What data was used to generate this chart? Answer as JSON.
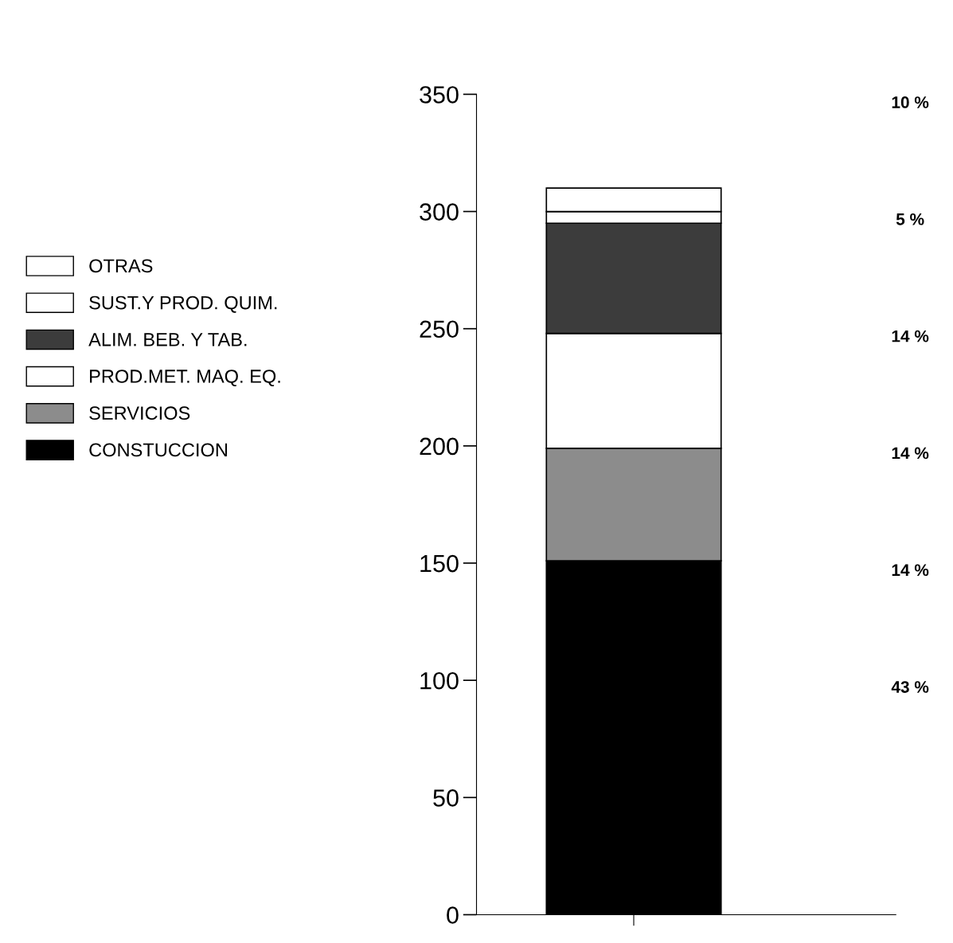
{
  "chart_data": {
    "type": "bar",
    "stacked": true,
    "categories": [
      null
    ],
    "series": [
      {
        "name": "CONSTUCCION",
        "color": "#000000",
        "values": [
          151
        ]
      },
      {
        "name": "SERVICIOS",
        "color": "#8c8c8c",
        "values": [
          48
        ]
      },
      {
        "name": "PROD.MET. MAQ. EQ.",
        "color": "#ffffff",
        "values": [
          49
        ]
      },
      {
        "name": "ALIM. BEB. Y TAB.",
        "color": "#3c3c3c",
        "values": [
          47
        ]
      },
      {
        "name": "SUST.Y PROD. QUIM.",
        "color": "#ffffff",
        "values": [
          5
        ]
      },
      {
        "name": "OTRAS",
        "color": "#ffffff",
        "values": [
          10
        ]
      }
    ],
    "annotations": [
      "10 %",
      "5 %",
      "14 %",
      "14 %",
      "14 %",
      "43 %"
    ],
    "ylim": [
      0,
      350
    ],
    "yticks": [
      0,
      50,
      100,
      150,
      200,
      250,
      300,
      350
    ],
    "grid": false,
    "legend": "left"
  }
}
